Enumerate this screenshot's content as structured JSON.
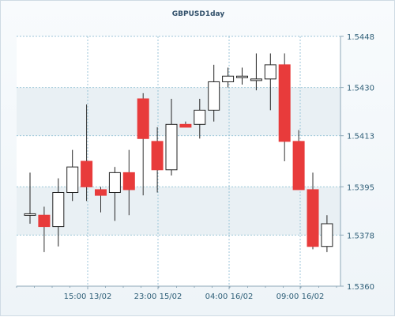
{
  "chart_data": {
    "type": "candlestick",
    "title": "GBPUSD1day",
    "ylim": [
      1.536,
      1.5448
    ],
    "y_ticks": [
      "1.5448",
      "1.5430",
      "1.5413",
      "1.5395",
      "1.5378",
      "1.5360"
    ],
    "x_ticks": [
      "15:00 13/02",
      "23:00 15/02",
      "04:00 16/02",
      "09:00 16/02"
    ],
    "grid": true,
    "colors": {
      "up_fill": "#ffffff",
      "up_stroke": "#222222",
      "down_fill": "#e83b3b",
      "grid": "#9cc6d8",
      "band": "#e9f0f4",
      "axis": "#8ea8b8"
    },
    "candles": [
      {
        "open": 1.53855,
        "high": 1.54,
        "low": 1.5382,
        "close": 1.53855
      },
      {
        "open": 1.5385,
        "high": 1.5388,
        "low": 1.5372,
        "close": 1.5381
      },
      {
        "open": 1.5381,
        "high": 1.5398,
        "low": 1.5374,
        "close": 1.5393
      },
      {
        "open": 1.5393,
        "high": 1.5408,
        "low": 1.539,
        "close": 1.5402
      },
      {
        "open": 1.5404,
        "high": 1.5424,
        "low": 1.539,
        "close": 1.5395
      },
      {
        "open": 1.5394,
        "high": 1.5395,
        "low": 1.5386,
        "close": 1.5392
      },
      {
        "open": 1.5393,
        "high": 1.5402,
        "low": 1.5383,
        "close": 1.54
      },
      {
        "open": 1.54,
        "high": 1.5408,
        "low": 1.5385,
        "close": 1.5394
      },
      {
        "open": 1.5426,
        "high": 1.5428,
        "low": 1.5392,
        "close": 1.5412
      },
      {
        "open": 1.5411,
        "high": 1.5416,
        "low": 1.5393,
        "close": 1.5401
      },
      {
        "open": 1.5401,
        "high": 1.5426,
        "low": 1.5399,
        "close": 1.5417
      },
      {
        "open": 1.5417,
        "high": 1.5418,
        "low": 1.5416,
        "close": 1.5416
      },
      {
        "open": 1.5417,
        "high": 1.5426,
        "low": 1.5412,
        "close": 1.5422
      },
      {
        "open": 1.5422,
        "high": 1.5438,
        "low": 1.5418,
        "close": 1.5432
      },
      {
        "open": 1.5432,
        "high": 1.5437,
        "low": 1.543,
        "close": 1.5434
      },
      {
        "open": 1.5434,
        "high": 1.5437,
        "low": 1.5431,
        "close": 1.5434
      },
      {
        "open": 1.5433,
        "high": 1.5442,
        "low": 1.5429,
        "close": 1.5433
      },
      {
        "open": 1.5433,
        "high": 1.5442,
        "low": 1.5422,
        "close": 1.5438
      },
      {
        "open": 1.5438,
        "high": 1.5442,
        "low": 1.5404,
        "close": 1.5411
      },
      {
        "open": 1.5411,
        "high": 1.5415,
        "low": 1.5394,
        "close": 1.5394
      },
      {
        "open": 1.5394,
        "high": 1.54,
        "low": 1.5373,
        "close": 1.5374
      },
      {
        "open": 1.5374,
        "high": 1.5385,
        "low": 1.5372,
        "close": 1.5382
      }
    ]
  }
}
